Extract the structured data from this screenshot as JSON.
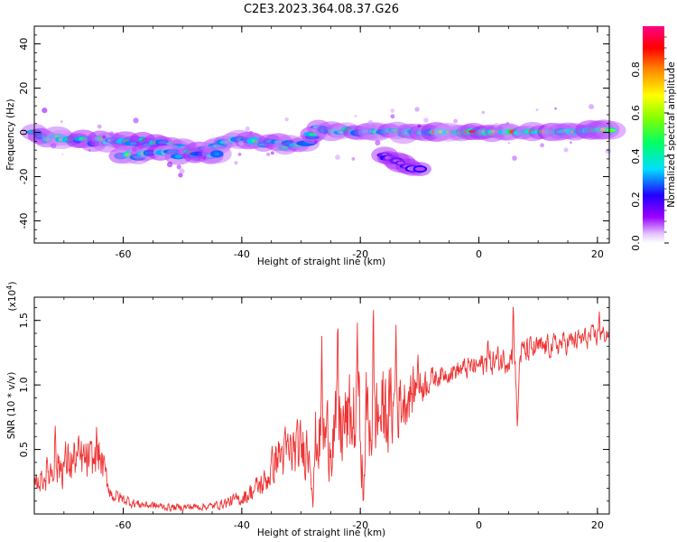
{
  "title": "C2E3.2023.364.08.37.G26",
  "colors": {
    "snr_line": "#ee3333",
    "frame": "#000000",
    "background": "#ffffff"
  },
  "chart_data": [
    {
      "type": "heatmap",
      "name": "spectrogram",
      "xlabel": "Height of straight line (km)",
      "ylabel": "Frequency (Hz)",
      "xlim": [
        -75,
        22
      ],
      "ylim": [
        -50,
        48
      ],
      "x_ticks": [
        -60,
        -40,
        -20,
        0,
        20
      ],
      "x_tick_labels": [
        "-60",
        "-40",
        "-20",
        "0",
        "20"
      ],
      "y_ticks": [
        -40,
        -20,
        0,
        20,
        40
      ],
      "y_tick_labels": [
        "-40",
        "-20",
        "0",
        "20",
        "40"
      ],
      "colorbar": {
        "label": "Normalized spectral amplitude",
        "range": [
          0,
          1
        ],
        "ticks": [
          0.0,
          0.2,
          0.4,
          0.6,
          0.8
        ],
        "tick_labels": [
          "0.0",
          "0.2",
          "0.4",
          "0.6",
          "0.8"
        ],
        "colormap": "hsv-rainbow"
      },
      "ridge": [
        {
          "x": -75,
          "freq": -1
        },
        {
          "x": -68,
          "freq": -4
        },
        {
          "x": -62,
          "freq": -4
        },
        {
          "x": -55,
          "freq": -5
        },
        {
          "x": -48,
          "freq": -8
        },
        {
          "x": -40,
          "freq": -3
        },
        {
          "x": -35,
          "freq": -5
        },
        {
          "x": -30,
          "freq": -6
        },
        {
          "x": -27,
          "freq": 2
        },
        {
          "x": -20,
          "freq": 0
        },
        {
          "x": -10,
          "freq": 0
        },
        {
          "x": 0,
          "freq": 0
        },
        {
          "x": 10,
          "freq": 0
        },
        {
          "x": 22,
          "freq": 1
        }
      ],
      "secondary_branch": [
        {
          "x": -60,
          "freq": -10
        },
        {
          "x": -50,
          "freq": -10
        },
        {
          "x": -44,
          "freq": -10
        }
      ],
      "spur": [
        {
          "x": -16,
          "freq": -10
        },
        {
          "x": -13,
          "freq": -14
        },
        {
          "x": -10,
          "freq": -17
        }
      ]
    },
    {
      "type": "line",
      "name": "snr",
      "xlabel": "Height of straight line (km)",
      "ylabel": "SNR (10 * v/v)",
      "y_scale_label": "(x10",
      "y_scale_exp": "4",
      "y_scale_close": ")",
      "xlim": [
        -75,
        22
      ],
      "ylim": [
        0.0,
        1.68
      ],
      "x_ticks": [
        -60,
        -40,
        -20,
        0,
        20
      ],
      "x_tick_labels": [
        "-60",
        "-40",
        "-20",
        "0",
        "20"
      ],
      "y_ticks": [
        0.5,
        1.0,
        1.5
      ],
      "y_tick_labels": [
        "0.5",
        "1.0",
        "1.5"
      ],
      "envelope": [
        {
          "x": -75,
          "mean": 0.22,
          "amp": 0.08
        },
        {
          "x": -72,
          "mean": 0.35,
          "amp": 0.22
        },
        {
          "x": -68,
          "mean": 0.42,
          "amp": 0.25
        },
        {
          "x": -65,
          "mean": 0.4,
          "amp": 0.22
        },
        {
          "x": -64,
          "mean": 0.45,
          "amp": 0.22
        },
        {
          "x": -62,
          "mean": 0.15,
          "amp": 0.08
        },
        {
          "x": -58,
          "mean": 0.08,
          "amp": 0.05
        },
        {
          "x": -52,
          "mean": 0.05,
          "amp": 0.04
        },
        {
          "x": -45,
          "mean": 0.06,
          "amp": 0.04
        },
        {
          "x": -40,
          "mean": 0.12,
          "amp": 0.08
        },
        {
          "x": -36,
          "mean": 0.25,
          "amp": 0.15
        },
        {
          "x": -34,
          "mean": 0.45,
          "amp": 0.25
        },
        {
          "x": -30,
          "mean": 0.5,
          "amp": 0.3
        },
        {
          "x": -26,
          "mean": 0.6,
          "amp": 0.4
        },
        {
          "x": -22,
          "mean": 0.7,
          "amp": 0.5
        },
        {
          "x": -18,
          "mean": 0.75,
          "amp": 0.55
        },
        {
          "x": -15,
          "mean": 0.8,
          "amp": 0.45
        },
        {
          "x": -11,
          "mean": 0.95,
          "amp": 0.25
        },
        {
          "x": -8,
          "mean": 1.05,
          "amp": 0.12
        },
        {
          "x": -5,
          "mean": 1.1,
          "amp": 0.1
        },
        {
          "x": 0,
          "mean": 1.15,
          "amp": 0.12
        },
        {
          "x": 4,
          "mean": 1.2,
          "amp": 0.15
        },
        {
          "x": 7,
          "mean": 1.25,
          "amp": 0.15
        },
        {
          "x": 12,
          "mean": 1.3,
          "amp": 0.12
        },
        {
          "x": 17,
          "mean": 1.35,
          "amp": 0.12
        },
        {
          "x": 22,
          "mean": 1.4,
          "amp": 0.1
        }
      ],
      "peaks": [
        {
          "x": -71.5,
          "y": 0.75
        },
        {
          "x": -64.5,
          "y": 0.68
        },
        {
          "x": -26.5,
          "y": 1.38
        },
        {
          "x": -23.8,
          "y": 1.6
        },
        {
          "x": -20.5,
          "y": 1.5
        },
        {
          "x": -17.8,
          "y": 1.68
        },
        {
          "x": -14.0,
          "y": 1.55
        },
        {
          "x": -10.3,
          "y": 1.3
        },
        {
          "x": 1.5,
          "y": 1.4
        },
        {
          "x": 5.8,
          "y": 1.68
        },
        {
          "x": 20.3,
          "y": 1.6
        }
      ],
      "troughs": [
        {
          "x": 6.5,
          "y": 0.65
        },
        {
          "x": -28.0,
          "y": 0.05
        },
        {
          "x": -19.5,
          "y": 0.02
        }
      ]
    }
  ]
}
